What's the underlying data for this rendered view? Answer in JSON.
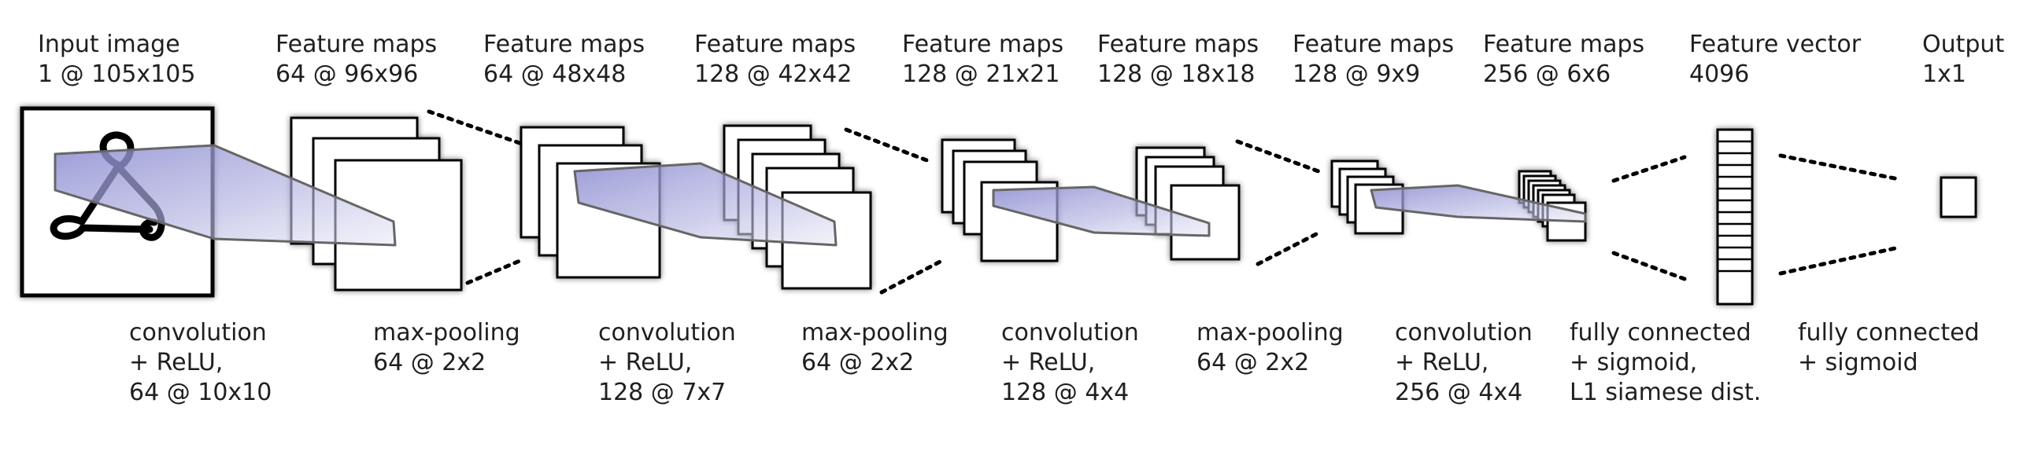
{
  "top_labels": [
    {
      "title": "Input image",
      "value": "1 @ 105x105"
    },
    {
      "title": "Feature maps",
      "value": "64 @ 96x96"
    },
    {
      "title": "Feature maps",
      "value": "64 @ 48x48"
    },
    {
      "title": "Feature maps",
      "value": "128 @ 42x42"
    },
    {
      "title": "Feature maps",
      "value": "128 @ 21x21"
    },
    {
      "title": "Feature maps",
      "value": "128 @ 18x18"
    },
    {
      "title": "Feature maps",
      "value": "128 @ 9x9"
    },
    {
      "title": "Feature maps",
      "value": "256 @ 6x6"
    },
    {
      "title": "Feature vector",
      "value": "4096"
    },
    {
      "title": "Output",
      "value": "1x1"
    }
  ],
  "bottom_labels": [
    {
      "line1": "convolution",
      "line2": "+ ReLU,",
      "line3": "64 @ 10x10"
    },
    {
      "line1": "max-pooling",
      "line2": "64 @ 2x2",
      "line3": ""
    },
    {
      "line1": "convolution",
      "line2": "+ ReLU,",
      "line3": "128 @ 7x7"
    },
    {
      "line1": "max-pooling",
      "line2": "64 @ 2x2",
      "line3": ""
    },
    {
      "line1": "convolution",
      "line2": "+ ReLU,",
      "line3": "128 @ 4x4"
    },
    {
      "line1": "max-pooling",
      "line2": "64 @ 2x2",
      "line3": ""
    },
    {
      "line1": "convolution",
      "line2": "+ ReLU,",
      "line3": "256 @ 4x4"
    },
    {
      "line1": "fully connected",
      "line2": "+ sigmoid,",
      "line3": "L1 siamese dist."
    },
    {
      "line1": "fully connected",
      "line2": "+ sigmoid",
      "line3": ""
    }
  ],
  "colors": {
    "receptive_field": "#7f7fc8",
    "stroke": "#000000",
    "shade": "#e4e4e4"
  }
}
